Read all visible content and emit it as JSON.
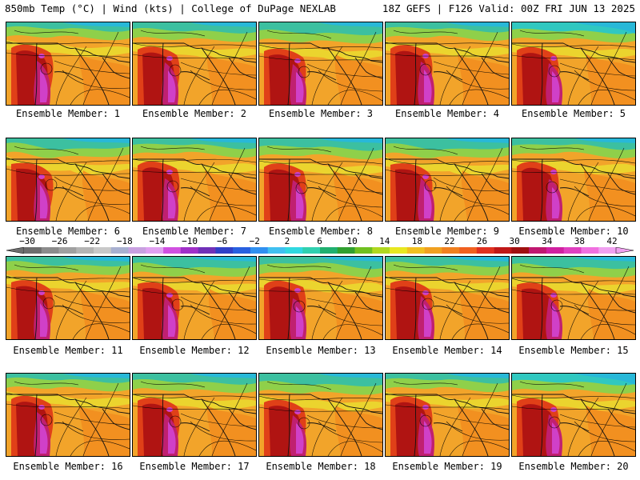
{
  "header": {
    "left": "850mb Temp (°C) | Wind (kts) | College of DuPage NEXLAB",
    "right": "18Z GEFS | F126 Valid: 00Z FRI JUN 13 2025"
  },
  "members": [
    {
      "label": "Ensemble Member: 1",
      "variant": 0
    },
    {
      "label": "Ensemble Member: 2",
      "variant": 1
    },
    {
      "label": "Ensemble Member: 3",
      "variant": 2
    },
    {
      "label": "Ensemble Member: 4",
      "variant": 3
    },
    {
      "label": "Ensemble Member: 5",
      "variant": 4
    },
    {
      "label": "Ensemble Member: 6",
      "variant": 5
    },
    {
      "label": "Ensemble Member: 7",
      "variant": 6
    },
    {
      "label": "Ensemble Member: 8",
      "variant": 7
    },
    {
      "label": "Ensemble Member: 9",
      "variant": 8
    },
    {
      "label": "Ensemble Member: 10",
      "variant": 9
    },
    {
      "label": "Ensemble Member: 11",
      "variant": 10
    },
    {
      "label": "Ensemble Member: 12",
      "variant": 11
    },
    {
      "label": "Ensemble Member: 13",
      "variant": 12
    },
    {
      "label": "Ensemble Member: 14",
      "variant": 13
    },
    {
      "label": "Ensemble Member: 15",
      "variant": 14
    },
    {
      "label": "Ensemble Member: 16",
      "variant": 15
    },
    {
      "label": "Ensemble Member: 17",
      "variant": 16
    },
    {
      "label": "Ensemble Member: 18",
      "variant": 17
    },
    {
      "label": "Ensemble Member: 19",
      "variant": 18
    },
    {
      "label": "Ensemble Member: 20",
      "variant": 19
    }
  ],
  "colorbar": {
    "ticks": [
      "−30",
      "−26",
      "−22",
      "−18",
      "−14",
      "−10",
      "−6",
      "−2",
      "2",
      "6",
      "10",
      "14",
      "18",
      "22",
      "26",
      "30",
      "34",
      "38",
      "42"
    ],
    "colors": [
      "#6e6e6e",
      "#8c8c8c",
      "#a0a0a0",
      "#b4b4b4",
      "#c8c8c8",
      "#a8b0d0",
      "#c8a0e0",
      "#e0a0f0",
      "#d050e0",
      "#a030c8",
      "#7030b8",
      "#3040c8",
      "#2860e0",
      "#3090f0",
      "#40c0f0",
      "#30d8e0",
      "#30d0b0",
      "#20b070",
      "#30a030",
      "#70c020",
      "#b0d820",
      "#e8e820",
      "#f0c020",
      "#f0a020",
      "#f08020",
      "#f06020",
      "#e03020",
      "#c01818",
      "#a01010",
      "#c01870",
      "#d020a0",
      "#e040c0",
      "#f070e0",
      "#f0a0f0"
    ]
  }
}
